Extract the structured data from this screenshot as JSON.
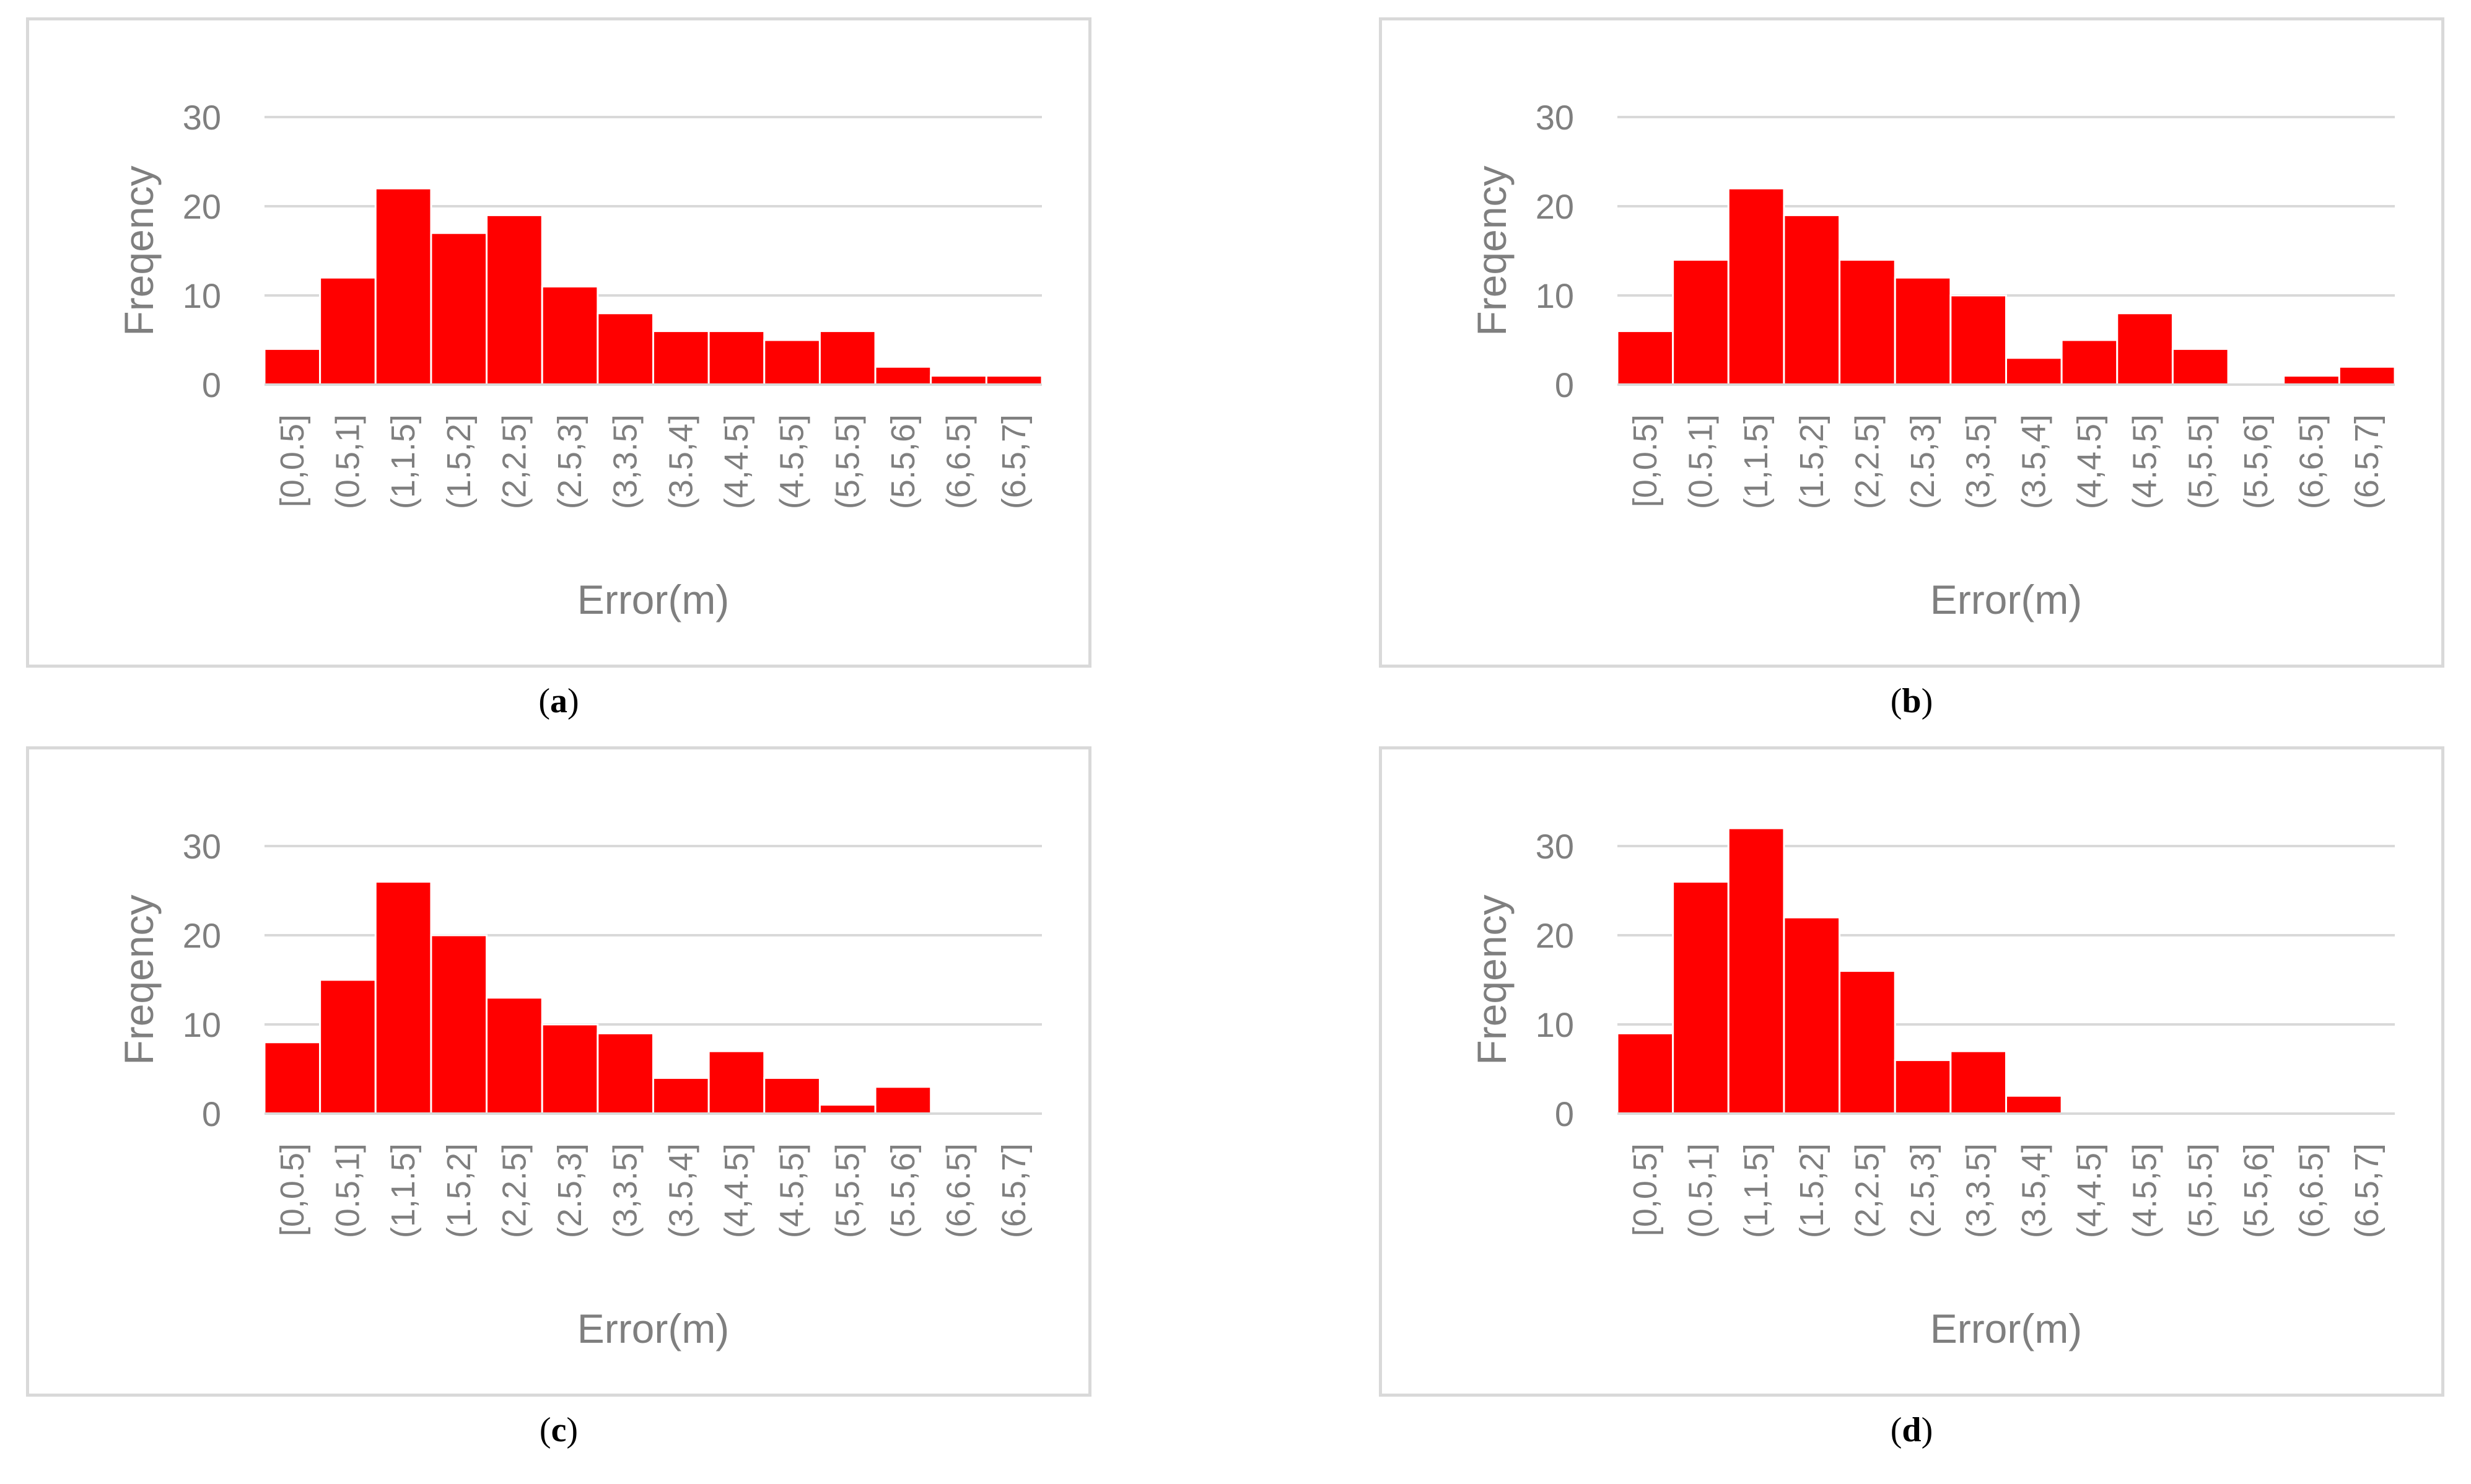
{
  "accent_color": "#ff0000",
  "grid_color": "#d9d9d9",
  "text_color": "#7f7f7f",
  "chart_data": [
    {
      "type": "bar",
      "panel_label": "a",
      "xlabel": "Error(m)",
      "ylabel": "Freqency",
      "ylim": [
        0,
        30
      ],
      "yticks": [
        "0",
        "10",
        "20",
        "30"
      ],
      "categories": [
        "[0,0.5]",
        "(0.5,1]",
        "(1,1.5]",
        "(1.5,2]",
        "(2,2.5]",
        "(2.5,3]",
        "(3,3.5]",
        "(3.5,4]",
        "(4,4.5]",
        "(4.5,5]",
        "(5,5.5]",
        "(5.5,6]",
        "(6,6.5]",
        "(6.5,7]"
      ],
      "values": [
        4,
        12,
        22,
        17,
        19,
        11,
        8,
        6,
        6,
        5,
        6,
        2,
        1,
        1
      ]
    },
    {
      "type": "bar",
      "panel_label": "b",
      "xlabel": "Error(m)",
      "ylabel": "Freqency",
      "ylim": [
        0,
        30
      ],
      "yticks": [
        "0",
        "10",
        "20",
        "30"
      ],
      "categories": [
        "[0,0.5]",
        "(0.5,1]",
        "(1,1.5]",
        "(1.5,2]",
        "(2,2.5]",
        "(2.5,3]",
        "(3,3.5]",
        "(3.5,4]",
        "(4,4.5]",
        "(4.5,5]",
        "(5,5.5]",
        "(5.5,6]",
        "(6,6.5]",
        "(6.5,7]"
      ],
      "values": [
        6,
        14,
        22,
        19,
        14,
        12,
        10,
        3,
        5,
        8,
        4,
        0,
        1,
        2
      ]
    },
    {
      "type": "bar",
      "panel_label": "c",
      "xlabel": "Error(m)",
      "ylabel": "Freqency",
      "ylim": [
        0,
        30
      ],
      "yticks": [
        "0",
        "10",
        "20",
        "30"
      ],
      "categories": [
        "[0,0.5]",
        "(0.5,1]",
        "(1,1.5]",
        "(1.5,2]",
        "(2,2.5]",
        "(2.5,3]",
        "(3,3.5]",
        "(3.5,4]",
        "(4,4.5]",
        "(4.5,5]",
        "(5,5.5]",
        "(5.5,6]",
        "(6,6.5]",
        "(6.5,7]"
      ],
      "values": [
        8,
        15,
        26,
        20,
        13,
        10,
        9,
        4,
        7,
        4,
        1,
        3,
        0,
        0
      ]
    },
    {
      "type": "bar",
      "panel_label": "d",
      "xlabel": "Error(m)",
      "ylabel": "Freqency",
      "ylim": [
        0,
        30
      ],
      "yticks": [
        "0",
        "10",
        "20",
        "30"
      ],
      "categories": [
        "[0,0.5]",
        "(0.5,1]",
        "(1,1.5]",
        "(1.5,2]",
        "(2,2.5]",
        "(2.5,3]",
        "(3,3.5]",
        "(3.5,4]",
        "(4,4.5]",
        "(4.5,5]",
        "(5,5.5]",
        "(5.5,6]",
        "(6,6.5]",
        "(6.5,7]"
      ],
      "values": [
        9,
        26,
        32,
        22,
        16,
        6,
        7,
        2,
        0,
        0,
        0,
        0,
        0,
        0
      ]
    }
  ],
  "captions": [
    {
      "open": "(",
      "label": "a",
      "close": ")"
    },
    {
      "open": "(",
      "label": "b",
      "close": ")"
    },
    {
      "open": "(",
      "label": "c",
      "close": ")"
    },
    {
      "open": "(",
      "label": "d",
      "close": ")"
    }
  ]
}
